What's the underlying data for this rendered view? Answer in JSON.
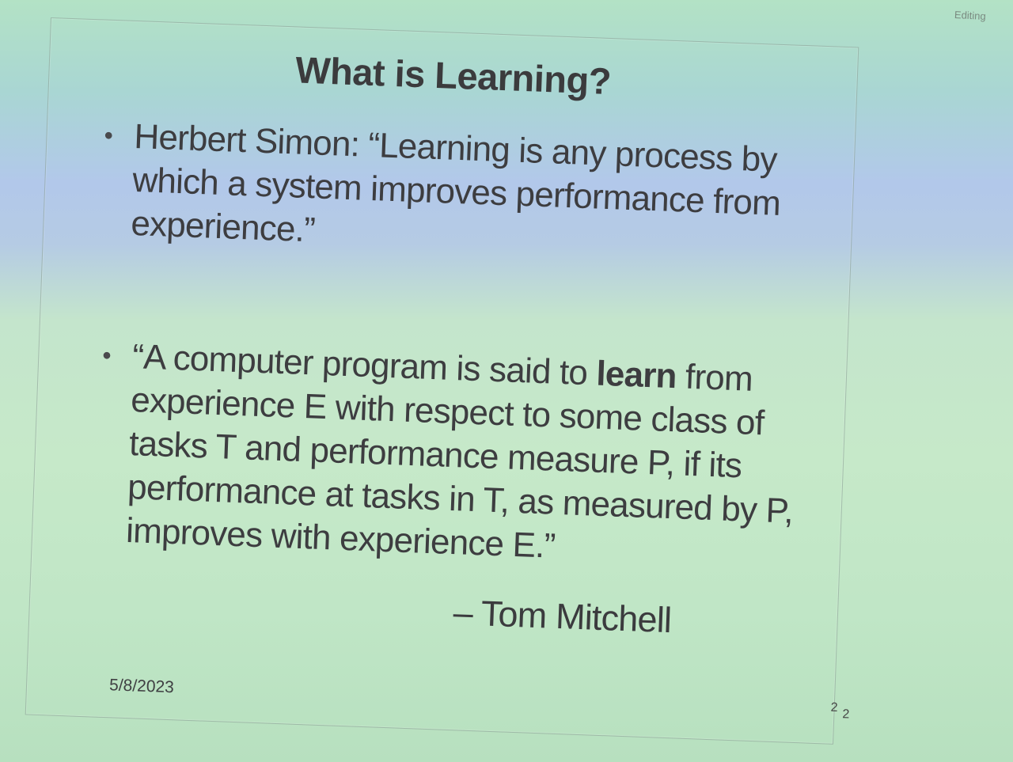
{
  "status_label": "Editing",
  "slide": {
    "title": "What is Learning?",
    "bullet1": "Herbert Simon: “Learning is any process by which a system improves performance from experience.”",
    "bullet2_pre": "“A computer program is said to ",
    "bullet2_bold": "learn",
    "bullet2_post": " from experience E with respect to some class of tasks T and performance measure P, if its performance at tasks in T, as measured by P, improves with experience E.”",
    "attribution": "– Tom Mitchell",
    "date": "5/8/2023",
    "page_number": "2",
    "page_number_dup": "2"
  },
  "colors": {
    "text": "#3a3a3c",
    "background_green": "#c4e5cc",
    "background_blue": "#b2c8ea"
  }
}
